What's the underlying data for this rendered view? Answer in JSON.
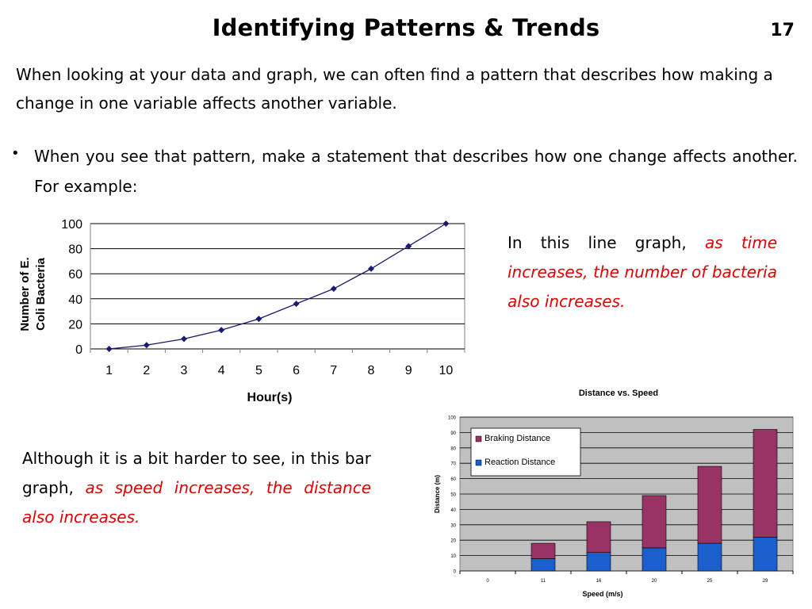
{
  "slide": {
    "title": "Identifying Patterns & Trends",
    "number": "17",
    "intro": "When looking at your data and graph, we can often find a pattern that describes how making a change in one variable affects another variable.",
    "bullet_marker": "•",
    "bullet": "When you see that pattern, make a statement that describes how one change affects another. For example:",
    "line_caption": {
      "plain": "In this line graph,",
      "highlight": "as time increases, the number of bacteria also increases."
    },
    "bar_caption": {
      "plain": "Although it is a bit harder to see, in this bar graph,",
      "highlight": "as speed increases, the distance also increases."
    },
    "colors": {
      "highlight": "#e00000"
    }
  },
  "chart_data": [
    {
      "type": "line",
      "title": "",
      "xlabel": "Hour(s)",
      "ylabel": "Number of E. Coli Bacteria",
      "x": [
        1,
        2,
        3,
        4,
        5,
        6,
        7,
        8,
        9,
        10
      ],
      "y": [
        0,
        3,
        8,
        15,
        24,
        36,
        48,
        64,
        82,
        100
      ],
      "ylim": [
        0,
        100
      ],
      "yticks": [
        0,
        20,
        40,
        60,
        80,
        100
      ],
      "grid": true,
      "line_color": "#1a1a6e"
    },
    {
      "type": "bar",
      "stacked": true,
      "title": "Distance vs. Speed",
      "xlabel": "Speed (m/s)",
      "ylabel": "Distance (m)",
      "categories": [
        "0",
        "11",
        "16",
        "20",
        "25",
        "29"
      ],
      "series": [
        {
          "name": "Reaction Distance",
          "values": [
            0,
            8,
            12,
            15,
            18,
            22
          ],
          "color": "#1a5fcc"
        },
        {
          "name": "Braking Distance",
          "values": [
            0,
            10,
            20,
            34,
            50,
            70
          ],
          "color": "#993366"
        }
      ],
      "ylim": [
        0,
        100
      ],
      "yticks": [
        0,
        10,
        20,
        30,
        40,
        50,
        60,
        70,
        80,
        90,
        100
      ],
      "legend": "top-left",
      "grid": true,
      "plot_background": "#c0c0c0"
    }
  ]
}
